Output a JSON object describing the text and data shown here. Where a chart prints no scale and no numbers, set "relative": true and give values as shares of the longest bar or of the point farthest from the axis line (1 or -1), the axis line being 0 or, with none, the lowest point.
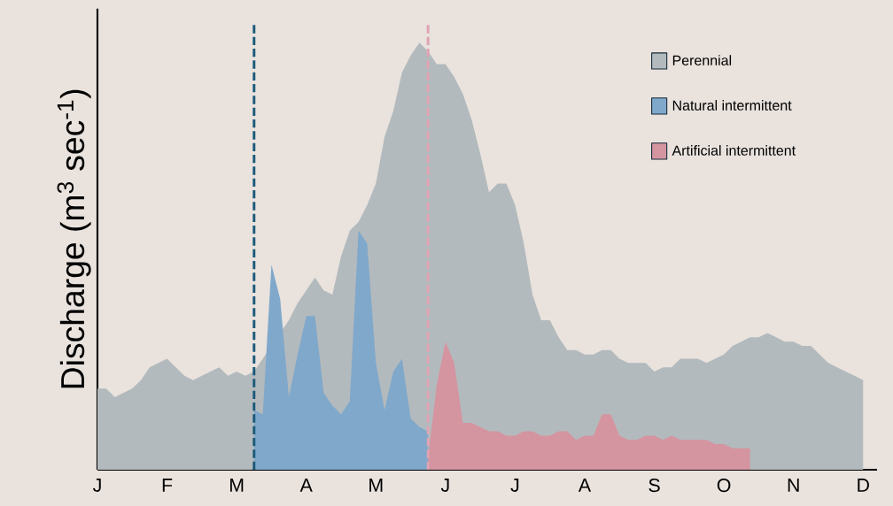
{
  "chart_data": {
    "type": "area",
    "relative": true,
    "ylabel": "Discharge (m$^{3}$ sec$^{-1}$)",
    "legend": "top right",
    "grid": false,
    "categories": [
      "J",
      null,
      null,
      null,
      null,
      null,
      null,
      null,
      "F",
      null,
      null,
      null,
      null,
      null,
      null,
      null,
      "M",
      null,
      null,
      null,
      null,
      null,
      null,
      null,
      "A",
      null,
      null,
      null,
      null,
      null,
      null,
      null,
      "M",
      null,
      null,
      null,
      null,
      null,
      null,
      null,
      "J",
      null,
      null,
      null,
      null,
      null,
      null,
      null,
      "J",
      null,
      null,
      null,
      null,
      null,
      null,
      null,
      "A",
      null,
      null,
      null,
      null,
      null,
      null,
      null,
      "S",
      null,
      null,
      null,
      null,
      null,
      null,
      null,
      "O",
      null,
      null,
      null,
      null,
      null,
      null,
      null,
      "N",
      null,
      null,
      null,
      null,
      null,
      null,
      null,
      "D",
      null
    ],
    "series": [
      {
        "name": "Perennial",
        "color": "#b3babd",
        "values": [
          0.19,
          0.19,
          0.17,
          0.18,
          0.19,
          0.21,
          0.24,
          0.25,
          0.26,
          0.24,
          0.22,
          0.21,
          0.22,
          0.23,
          0.24,
          0.22,
          0.23,
          0.22,
          0.23,
          0.26,
          null,
          null,
          0.35,
          0.39,
          0.42,
          0.45,
          0.42,
          0.41,
          0.5,
          0.56,
          0.58,
          0.62,
          0.67,
          0.78,
          0.84,
          0.93,
          0.97,
          1.0,
          0.98,
          0.95,
          0.95,
          0.92,
          0.88,
          0.82,
          0.74,
          0.65,
          0.67,
          0.67,
          0.62,
          0.53,
          0.41,
          0.35,
          0.35,
          0.31,
          0.28,
          0.28,
          0.27,
          0.27,
          0.28,
          0.28,
          0.26,
          0.25,
          0.25,
          0.25,
          0.23,
          0.24,
          0.24,
          0.26,
          0.26,
          0.26,
          0.25,
          0.26,
          0.27,
          0.29,
          0.3,
          0.31,
          0.31,
          0.32,
          0.31,
          0.3,
          0.3,
          0.29,
          0.29,
          0.27,
          0.25,
          0.24,
          0.23,
          0.22,
          0.21,
          null
        ]
      },
      {
        "name": "Natural intermittent",
        "color": "#80a8cb",
        "values": [
          null,
          null,
          null,
          null,
          null,
          null,
          null,
          null,
          null,
          null,
          null,
          null,
          null,
          null,
          null,
          null,
          null,
          null,
          0.14,
          0.13,
          0.48,
          0.4,
          0.17,
          0.27,
          0.36,
          0.36,
          0.18,
          0.15,
          0.13,
          0.16,
          0.56,
          0.53,
          0.25,
          0.14,
          0.23,
          0.26,
          0.12,
          0.1,
          0.09,
          null,
          null,
          null,
          null,
          null,
          null,
          null,
          null,
          null,
          null,
          null,
          null,
          null,
          null,
          null,
          null,
          null,
          null,
          null,
          null,
          null,
          null,
          null,
          null,
          null,
          null,
          null,
          null,
          null,
          null,
          null,
          null,
          null,
          null,
          null,
          null,
          null,
          null,
          null,
          null,
          null,
          null,
          null,
          null,
          null,
          null,
          null,
          null,
          null,
          null,
          null
        ]
      },
      {
        "name": "Artificial intermittent",
        "color": "#d495a0",
        "values": [
          null,
          null,
          null,
          null,
          null,
          null,
          null,
          null,
          null,
          null,
          null,
          null,
          null,
          null,
          null,
          null,
          null,
          null,
          null,
          null,
          null,
          null,
          null,
          null,
          null,
          null,
          null,
          null,
          null,
          null,
          null,
          null,
          null,
          null,
          null,
          null,
          null,
          null,
          0.03,
          0.2,
          0.3,
          0.25,
          0.11,
          0.11,
          0.1,
          0.09,
          0.09,
          0.08,
          0.08,
          0.09,
          0.09,
          0.08,
          0.08,
          0.09,
          0.09,
          0.07,
          0.08,
          0.08,
          0.13,
          0.13,
          0.08,
          0.07,
          0.07,
          0.08,
          0.08,
          0.07,
          0.08,
          0.07,
          0.07,
          0.07,
          0.07,
          0.06,
          0.06,
          0.05,
          0.05,
          0.05,
          null,
          null,
          null,
          null,
          null,
          null,
          null,
          null,
          null,
          null,
          null,
          null,
          null,
          null
        ]
      }
    ]
  }
}
